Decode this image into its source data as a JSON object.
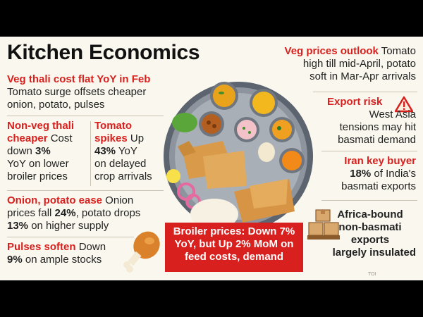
{
  "title": "Kitchen Economics",
  "veg_thali": {
    "heading": "Veg thali cost flat YoY in Feb",
    "line1": "Tomato surge offsets cheaper",
    "line2": "onion, potato, pulses"
  },
  "non_veg": {
    "h1": "Non-veg thali",
    "h2": "cheaper",
    "t2": " Cost",
    "l3a": "down ",
    "l3b": "3%",
    "l4": "YoY on lower",
    "l5": "broiler prices"
  },
  "tomato": {
    "h1": "Tomato",
    "h2": "spikes",
    "t2": " Up",
    "l3a": "43%",
    "l3b": " YoY",
    "l4": "on delayed",
    "l5": "crop arrivals"
  },
  "onion": {
    "heading": "Onion, potato ease",
    "t1": " Onion",
    "l2a": "prices fall ",
    "l2b": "24%",
    "l2c": ", potato drops",
    "l3a": "13%",
    "l3b": " on higher supply"
  },
  "pulses": {
    "heading": "Pulses soften",
    "t1": " Down",
    "l2a": "9%",
    "l2b": " on ample stocks"
  },
  "broiler": {
    "l1a": "Broiler prices: Down ",
    "l1b": "7%",
    "l2a": "YoY, but Up ",
    "l2b": "2%",
    "l2c": " MoM on",
    "l3": "feed costs, demand"
  },
  "outlook": {
    "heading": "Veg prices outlook",
    "t1": " Tomato",
    "l2": "high till mid-April, potato",
    "l3": "soft in Mar-Apr arrivals"
  },
  "export_risk": {
    "heading": "Export risk",
    "l1": "West Asia",
    "l2": "tensions may hit",
    "l3": "basmati demand"
  },
  "iran": {
    "heading": "Iran key buyer",
    "l1a": "18%",
    "l1b": " of India's",
    "l2": "basmati exports"
  },
  "africa": {
    "l1": "Africa-bound",
    "l2": "non-basmati",
    "l3": "exports",
    "l4": "largely insulated"
  },
  "watermark": "TOI",
  "colors": {
    "accent_red": "#d8201e",
    "background": "#faf7ee",
    "frame": "#000000"
  },
  "icons": [
    "thali-plate-illustration",
    "chicken-leg-icon",
    "warning-triangle-icon",
    "cargo-boxes-icon"
  ]
}
